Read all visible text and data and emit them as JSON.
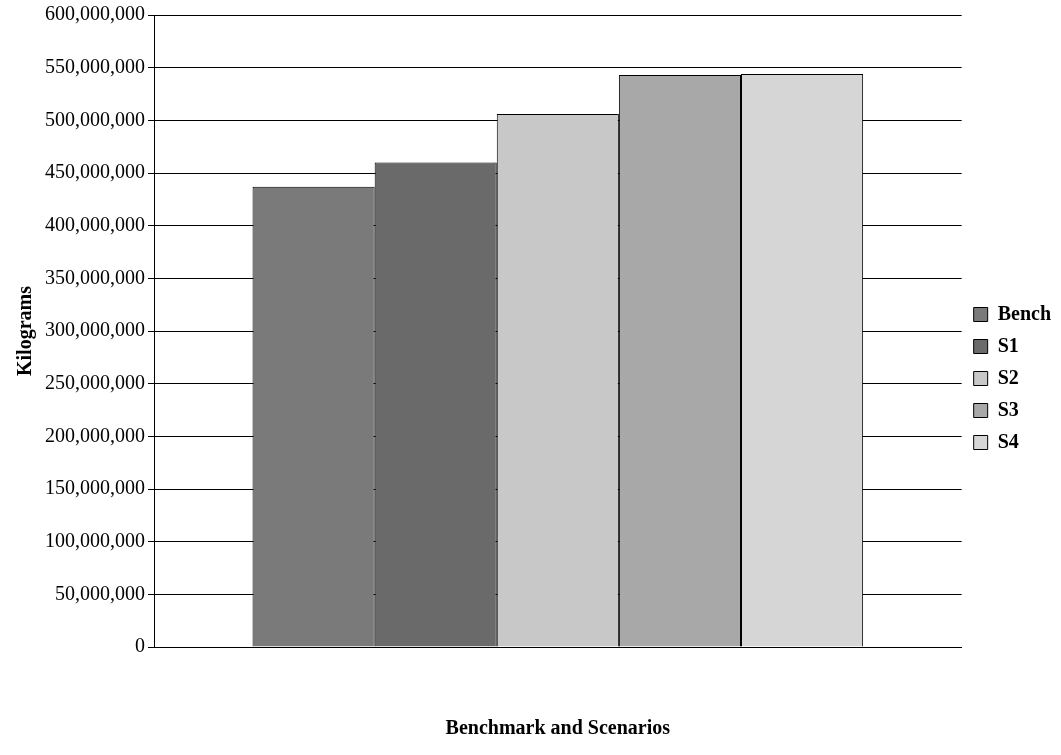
{
  "chart_data": {
    "type": "bar",
    "xlabel": "Benchmark and Scenarios",
    "ylabel": "Kilograms",
    "categories": [
      null
    ],
    "series": [
      {
        "name": "Bench",
        "color": "#7a7a7a",
        "values": [
          437000000
        ]
      },
      {
        "name": "S1",
        "color": "#6a6a6a",
        "values": [
          460000000
        ]
      },
      {
        "name": "S2",
        "color": "#c8c8c8",
        "values": [
          506000000
        ]
      },
      {
        "name": "S3",
        "color": "#a8a8a8",
        "values": [
          543000000
        ]
      },
      {
        "name": "S4",
        "color": "#d6d6d6",
        "values": [
          544000000
        ]
      }
    ],
    "ylim": [
      0,
      600000000
    ],
    "yticks": [
      {
        "value": 0,
        "label": "0"
      },
      {
        "value": 50000000,
        "label": "50,000,000"
      },
      {
        "value": 100000000,
        "label": "100,000,000"
      },
      {
        "value": 150000000,
        "label": "150,000,000"
      },
      {
        "value": 200000000,
        "label": "200,000,000"
      },
      {
        "value": 250000000,
        "label": "250,000,000"
      },
      {
        "value": 300000000,
        "label": "300,000,000"
      },
      {
        "value": 350000000,
        "label": "350,000,000"
      },
      {
        "value": 400000000,
        "label": "400,000,000"
      },
      {
        "value": 450000000,
        "label": "450,000,000"
      },
      {
        "value": 500000000,
        "label": "500,000,000"
      },
      {
        "value": 550000000,
        "label": "550,000,000"
      },
      {
        "value": 600000000,
        "label": "600,000,000"
      }
    ],
    "grid": "y",
    "legend": "right"
  }
}
